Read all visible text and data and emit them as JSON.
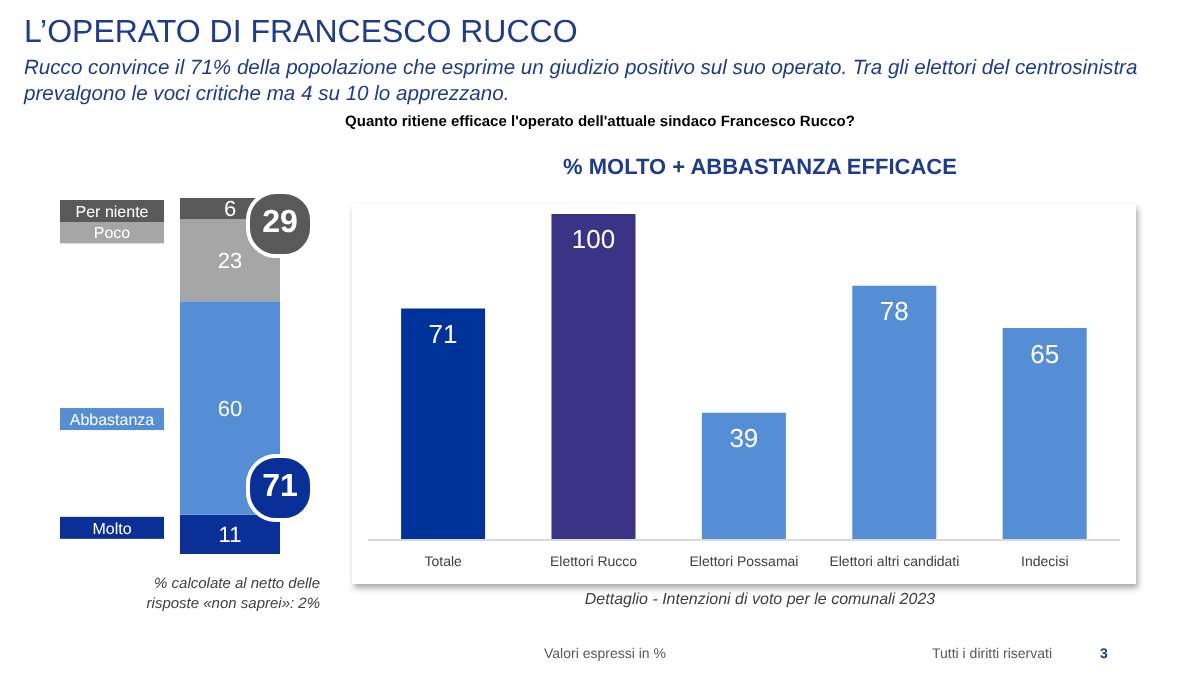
{
  "chart_data": [
    {
      "type": "bar",
      "stacked": true,
      "title": "L’OPERATO DI FRANCESCO RUCCO",
      "subtitle": "Rucco convince il 71% della popolazione che esprime un giudizio positivo sul suo operato. Tra gli elettori del centrosinistra prevalgono le voci critiche ma 4 su 10 lo apprezzano.",
      "categories": [
        null
      ],
      "series": [
        {
          "name": "Molto",
          "color": "#0a2f96",
          "values": [
            11
          ]
        },
        {
          "name": "Abbastanza",
          "color": "#558ed5",
          "values": [
            60
          ]
        },
        {
          "name": "Poco",
          "color": "#a6a6a6",
          "values": [
            23
          ]
        },
        {
          "name": "Per niente",
          "color": "#595959",
          "values": [
            6
          ]
        }
      ],
      "data_labels": true,
      "legend": false,
      "grid": false,
      "annotations": [
        "29",
        "71",
        "Quanto ritiene efficace l'operato dell'attuale sindaco Francesco Rucco?",
        "% calcolate al netto delle risposte «non saprei»: 2%",
        "Valori espressi in %",
        "Tutti i diritti riservati",
        "3"
      ]
    },
    {
      "type": "bar",
      "title": "% MOLTO + ABBASTANZA EFFICACE",
      "xlabel": "Dettaglio - Intenzioni di voto per le comunali 2023",
      "categories": [
        "Totale",
        "Elettori Rucco",
        "Elettori Possamai",
        "Elettori altri candidati",
        "Indecisi"
      ],
      "values": [
        71,
        100,
        39,
        78,
        65
      ],
      "colors": [
        "#003399",
        "#3b3486",
        "#558ed5",
        "#558ed5",
        "#558ed5"
      ],
      "data_labels": true,
      "legend": false,
      "grid": false
    }
  ]
}
